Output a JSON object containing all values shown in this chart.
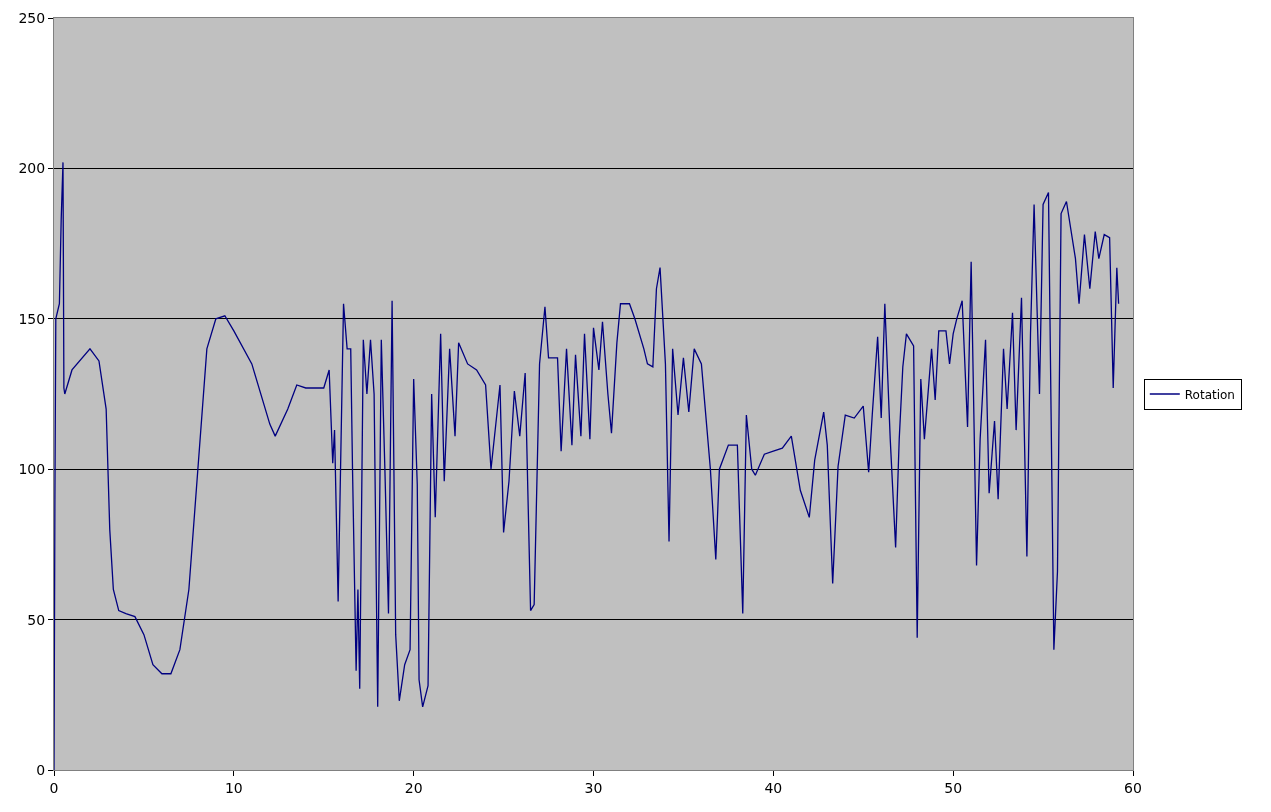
{
  "chart_data": {
    "type": "line",
    "xlim": [
      0,
      60
    ],
    "ylim": [
      0,
      250
    ],
    "xticks": [
      0,
      10,
      20,
      30,
      40,
      50,
      60
    ],
    "yticks": [
      0,
      50,
      100,
      150,
      200,
      250
    ],
    "grid": "y",
    "legend": "right",
    "marker": "none",
    "line_style": "solid",
    "series": [
      {
        "name": "Rotation",
        "color": "#000080",
        "x": [
          0,
          0.05,
          0.1,
          0.3,
          0.4,
          0.5,
          0.55,
          0.6,
          1,
          2,
          2.5,
          2.9,
          3.1,
          3.3,
          3.6,
          4,
          4.5,
          5,
          5.5,
          6,
          6.5,
          7,
          7.5,
          8,
          8.5,
          9,
          9.5,
          10,
          11,
          12,
          12.3,
          13,
          13.5,
          14,
          15,
          15.3,
          15.5,
          15.6,
          15.8,
          16.1,
          16.3,
          16.5,
          16.6,
          16.8,
          16.9,
          17,
          17.2,
          17.4,
          17.6,
          17.8,
          18,
          18.2,
          18.4,
          18.6,
          18.8,
          19,
          19.2,
          19.5,
          19.8,
          20,
          20.2,
          20.3,
          20.5,
          20.8,
          21,
          21.2,
          21.5,
          21.7,
          22,
          22.3,
          22.5,
          23,
          23.5,
          24,
          24.3,
          24.8,
          25,
          25.3,
          25.6,
          25.9,
          26.2,
          26.5,
          26.7,
          27,
          27.3,
          27.5,
          28,
          28.2,
          28.5,
          28.8,
          29,
          29.3,
          29.5,
          29.8,
          30,
          30.3,
          30.5,
          30.8,
          31,
          31.3,
          31.5,
          32,
          32.3,
          32.8,
          33,
          33.3,
          33.5,
          33.7,
          34,
          34.2,
          34.4,
          34.7,
          35,
          35.3,
          35.6,
          36,
          36.5,
          36.8,
          37,
          37.5,
          38,
          38.3,
          38.5,
          38.8,
          39,
          39.5,
          40,
          40.5,
          41,
          41.5,
          42,
          42.3,
          42.8,
          43,
          43.3,
          43.6,
          44,
          44.5,
          45,
          45.3,
          45.5,
          45.8,
          46,
          46.2,
          46.5,
          46.8,
          47,
          47.2,
          47.4,
          47.8,
          48,
          48.2,
          48.4,
          48.8,
          49,
          49.2,
          49.6,
          49.8,
          50,
          50.2,
          50.5,
          50.8,
          51,
          51.3,
          51.5,
          51.8,
          52,
          52.3,
          52.5,
          52.8,
          53,
          53.3,
          53.5,
          53.8,
          54.1,
          54.3,
          54.5,
          54.8,
          55,
          55.3,
          55.6,
          55.8,
          56,
          56.3,
          56.8,
          57,
          57.3,
          57.6,
          57.9,
          58.1,
          58.4,
          58.7,
          58.9,
          59.1,
          59.2
        ],
        "values": [
          0,
          90,
          150,
          155,
          183,
          202,
          127,
          125,
          133,
          140,
          136,
          120,
          80,
          60,
          53,
          52,
          51,
          45,
          35,
          32,
          32,
          40,
          60,
          100,
          140,
          150,
          151,
          146,
          135,
          115,
          111,
          120,
          128,
          127,
          127,
          133,
          102,
          113,
          56,
          155,
          140,
          140,
          100,
          33,
          60,
          27,
          143,
          125,
          143,
          125,
          21,
          143,
          100,
          52,
          156,
          45,
          23,
          35,
          40,
          130,
          95,
          30,
          21,
          28,
          125,
          84,
          145,
          96,
          140,
          111,
          142,
          135,
          133,
          128,
          100,
          128,
          79,
          96,
          126,
          111,
          132,
          53,
          55,
          135,
          154,
          137,
          137,
          106,
          140,
          108,
          138,
          111,
          145,
          110,
          147,
          133,
          149,
          125,
          112,
          142,
          155,
          155,
          150,
          140,
          135,
          134,
          160,
          167,
          135,
          76,
          140,
          118,
          137,
          119,
          140,
          135,
          100,
          70,
          100,
          108,
          108,
          52,
          118,
          100,
          98,
          105,
          106,
          107,
          111,
          93,
          84,
          103,
          119,
          108,
          62,
          101,
          118,
          117,
          121,
          99,
          118,
          144,
          117,
          155,
          110,
          74,
          110,
          134,
          145,
          141,
          44,
          130,
          110,
          140,
          123,
          146,
          146,
          135,
          145,
          150,
          156,
          114,
          169,
          68,
          110,
          143,
          92,
          116,
          90,
          140,
          120,
          152,
          113,
          157,
          71,
          145,
          188,
          125,
          188,
          192,
          40,
          66,
          185,
          189,
          170,
          155,
          178,
          160,
          179,
          170,
          178,
          177,
          127,
          167,
          155
        ]
      }
    ]
  }
}
